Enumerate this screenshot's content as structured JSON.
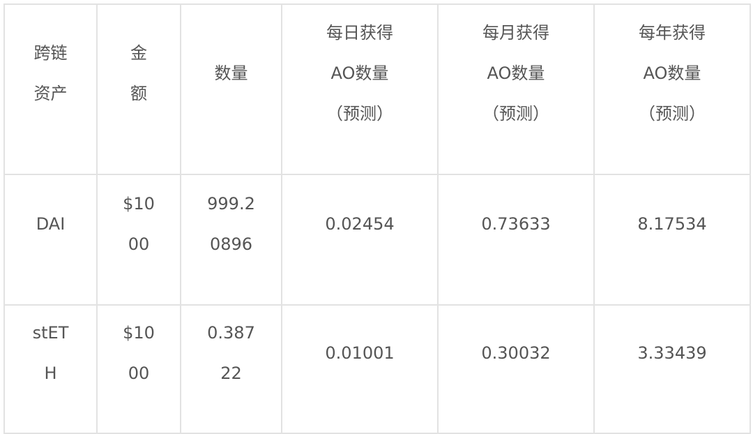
{
  "table": {
    "headers": [
      "跨链资产",
      "金额",
      "数量",
      "每日获得AO数量（预测）",
      "每月获得AO数量（预测）",
      "每年获得AO数量（预测）"
    ],
    "rows": [
      {
        "asset": "DAI",
        "amount": "$1000",
        "quantity": "999.20896",
        "daily": "0.02454",
        "monthly": "0.73633",
        "yearly": "8.17534"
      },
      {
        "asset": "stETH",
        "amount": "$1000",
        "quantity": "0.38722",
        "daily": "0.01001",
        "monthly": "0.30032",
        "yearly": "3.33439"
      }
    ]
  }
}
